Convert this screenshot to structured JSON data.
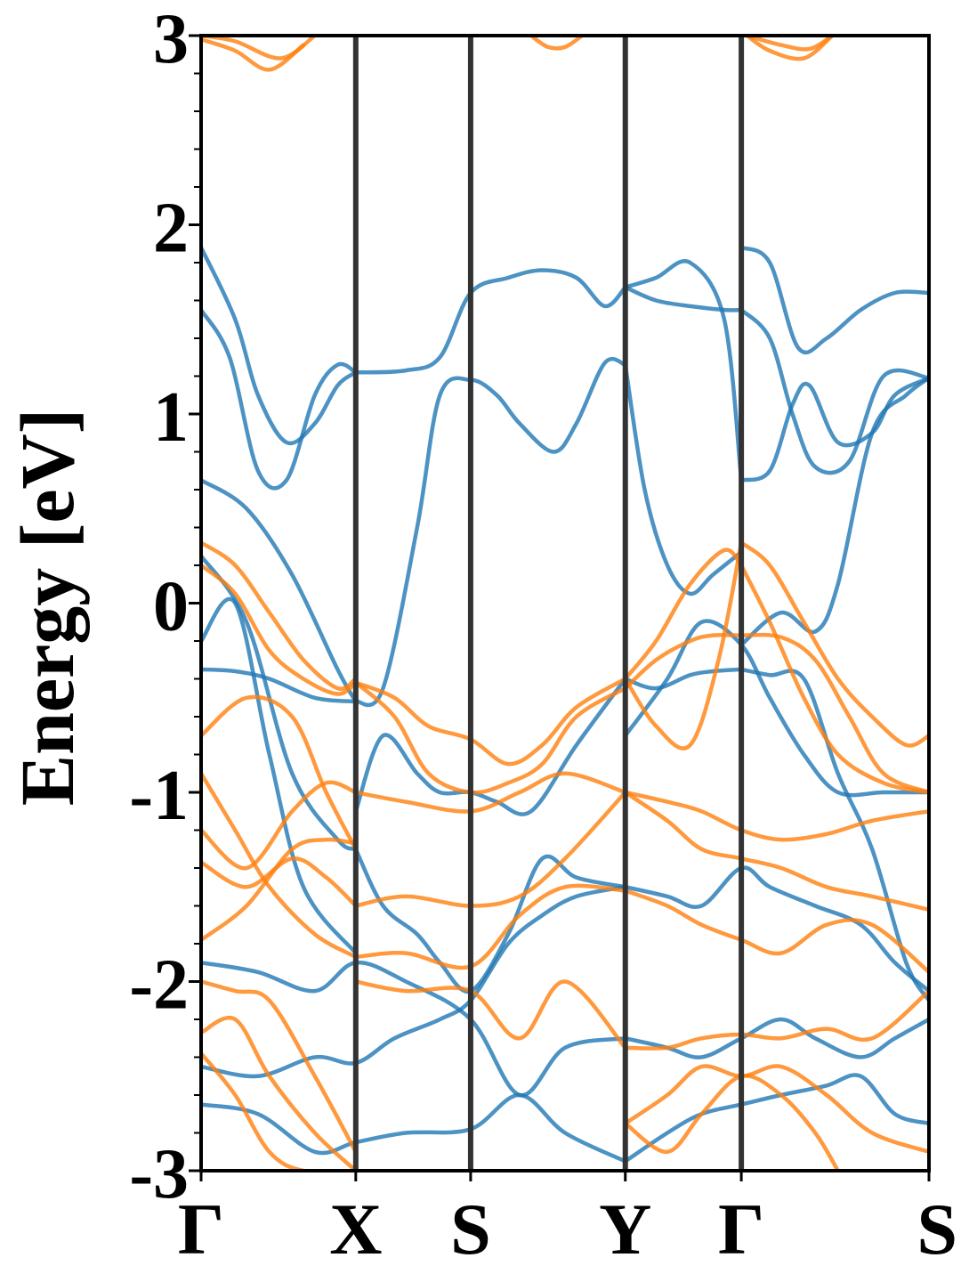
{
  "chart_data": {
    "type": "line",
    "title": "",
    "ylabel": "Energy [eV]",
    "xlabel": "",
    "ylim": [
      -3,
      3
    ],
    "yticks": [
      -3,
      -2,
      -1,
      0,
      1,
      2,
      3
    ],
    "ytick_labels": [
      "-3",
      "-2",
      "-1",
      "0",
      "1",
      "2",
      "3"
    ],
    "xlim": [
      0,
      6.4
    ],
    "high_symmetry_points": [
      {
        "label": "Γ",
        "x": 0.0
      },
      {
        "label": "X",
        "x": 1.36
      },
      {
        "label": "S",
        "x": 2.37
      },
      {
        "label": "Y",
        "x": 3.73
      },
      {
        "label": "Γ",
        "x": 4.75
      },
      {
        "label": "S",
        "x": 6.4
      }
    ],
    "grid": false,
    "legend": "none",
    "colors": {
      "spin_up": "#1f77b4",
      "spin_down": "#ff7f0e",
      "kpath_lines": "#333333"
    },
    "series": [
      {
        "color": "#1f77b4",
        "x": [
          0,
          0.3,
          0.5,
          0.75,
          1.0,
          1.2,
          1.36
        ],
        "y": [
          1.88,
          1.5,
          1.1,
          0.85,
          0.95,
          1.15,
          1.22
        ]
      },
      {
        "color": "#1f77b4",
        "x": [
          0,
          0.25,
          0.5,
          0.75,
          1.0,
          1.2,
          1.36
        ],
        "y": [
          1.55,
          1.3,
          0.7,
          0.65,
          1.1,
          1.26,
          1.22
        ]
      },
      {
        "color": "#1f77b4",
        "x": [
          1.36,
          1.8,
          2.1,
          2.37,
          2.7,
          3.0,
          3.3,
          3.55,
          3.73
        ],
        "y": [
          1.22,
          1.23,
          1.3,
          1.64,
          1.72,
          1.76,
          1.72,
          1.57,
          1.67
        ]
      },
      {
        "color": "#1f77b4",
        "x": [
          0,
          0.4,
          0.8,
          1.2,
          1.36
        ],
        "y": [
          0.65,
          0.5,
          0.15,
          -0.35,
          -0.52
        ]
      },
      {
        "color": "#1f77b4",
        "x": [
          1.36,
          1.6,
          1.9,
          2.1,
          2.37,
          2.6,
          2.8,
          3.1,
          3.3,
          3.55,
          3.73
        ],
        "y": [
          -0.52,
          -0.45,
          0.4,
          1.1,
          1.18,
          1.1,
          0.95,
          0.8,
          0.95,
          1.27,
          1.26
        ]
      },
      {
        "color": "#1f77b4",
        "x": [
          3.73,
          3.9,
          4.1,
          4.3,
          4.5,
          4.75
        ],
        "y": [
          1.26,
          0.6,
          0.2,
          0.05,
          0.15,
          0.27
        ]
      },
      {
        "color": "#1f77b4",
        "x": [
          3.73,
          4.0,
          4.3,
          4.6,
          4.75
        ],
        "y": [
          1.67,
          1.6,
          1.57,
          1.55,
          1.55
        ]
      },
      {
        "color": "#1f77b4",
        "x": [
          3.73,
          4.0,
          4.3,
          4.6,
          4.75
        ],
        "y": [
          1.67,
          1.72,
          1.8,
          1.5,
          0.65
        ]
      },
      {
        "color": "#1f77b4",
        "x": [
          4.75,
          5.0,
          5.25,
          5.5,
          5.8,
          6.1,
          6.4
        ],
        "y": [
          1.88,
          1.8,
          1.35,
          1.4,
          1.55,
          1.64,
          1.64
        ]
      },
      {
        "color": "#1f77b4",
        "x": [
          4.75,
          5.0,
          5.2,
          5.35,
          5.6,
          5.9,
          6.1,
          6.4
        ],
        "y": [
          0.65,
          0.7,
          1.05,
          1.15,
          0.85,
          0.9,
          1.1,
          1.19
        ]
      },
      {
        "color": "#1f77b4",
        "x": [
          4.75,
          5.0,
          5.2,
          5.4,
          5.7,
          6.0,
          6.4
        ],
        "y": [
          1.55,
          1.4,
          1.0,
          0.72,
          0.75,
          1.2,
          1.19
        ]
      },
      {
        "color": "#1f77b4",
        "x": [
          4.75,
          5.1,
          5.4,
          5.6,
          5.9,
          6.2,
          6.4
        ],
        "y": [
          -0.22,
          -0.05,
          -0.15,
          0.1,
          0.9,
          1.1,
          1.19
        ]
      },
      {
        "color": "#1f77b4",
        "x": [
          0,
          0.3,
          0.6,
          1.0,
          1.36
        ],
        "y": [
          -0.35,
          -0.36,
          -0.4,
          -0.5,
          -0.52
        ]
      },
      {
        "color": "#1f77b4",
        "x": [
          0,
          0.3,
          0.6,
          0.9,
          1.36
        ],
        "y": [
          -0.2,
          0.0,
          -0.8,
          -1.5,
          -1.85
        ]
      },
      {
        "color": "#1f77b4",
        "x": [
          0,
          0.4,
          0.8,
          1.2,
          1.36
        ],
        "y": [
          0.25,
          -0.1,
          -0.9,
          -1.25,
          -1.3
        ]
      },
      {
        "color": "#1f77b4",
        "x": [
          1.36,
          1.6,
          1.9,
          2.1,
          2.37,
          2.7,
          3.0,
          3.3,
          3.73
        ],
        "y": [
          -1.3,
          -1.6,
          -1.75,
          -1.9,
          -2.05,
          -1.75,
          -1.35,
          -1.45,
          -1.5
        ]
      },
      {
        "color": "#1f77b4",
        "x": [
          1.36,
          1.6,
          1.9,
          2.1,
          2.37,
          2.6,
          2.9,
          3.3,
          3.73
        ],
        "y": [
          -1.1,
          -0.7,
          -0.9,
          -1.0,
          -1.0,
          -1.05,
          -1.1,
          -0.75,
          -0.4
        ]
      },
      {
        "color": "#1f77b4",
        "x": [
          3.73,
          4.0,
          4.3,
          4.5,
          4.75
        ],
        "y": [
          -0.4,
          -0.45,
          -0.38,
          -0.36,
          -0.35
        ]
      },
      {
        "color": "#1f77b4",
        "x": [
          3.73,
          4.1,
          4.4,
          4.75,
          5.0,
          5.3,
          5.6,
          6.0,
          6.4
        ],
        "y": [
          -0.7,
          -0.4,
          -0.1,
          -0.22,
          -0.5,
          -0.8,
          -1.0,
          -1.0,
          -1.0
        ]
      },
      {
        "color": "#1f77b4",
        "x": [
          4.75,
          5.0,
          5.3,
          5.6,
          5.9,
          6.2,
          6.4
        ],
        "y": [
          -0.35,
          -0.38,
          -0.4,
          -0.9,
          -1.3,
          -1.9,
          -2.1
        ]
      },
      {
        "color": "#1f77b4",
        "x": [
          0,
          0.5,
          1.0,
          1.36,
          1.8,
          2.37,
          2.8,
          3.2,
          3.73
        ],
        "y": [
          -1.9,
          -1.95,
          -2.05,
          -1.9,
          -2.0,
          -2.2,
          -2.6,
          -2.35,
          -2.3
        ]
      },
      {
        "color": "#1f77b4",
        "x": [
          0,
          0.5,
          1.0,
          1.36,
          1.7,
          2.1,
          2.37,
          2.7,
          3.0,
          3.3,
          3.73
        ],
        "y": [
          -2.45,
          -2.5,
          -2.4,
          -2.43,
          -2.3,
          -2.2,
          -2.1,
          -1.8,
          -1.65,
          -1.55,
          -1.5
        ]
      },
      {
        "color": "#1f77b4",
        "x": [
          0,
          0.5,
          1.0,
          1.36,
          1.8,
          2.37,
          2.8,
          3.2,
          3.73
        ],
        "y": [
          -2.65,
          -2.7,
          -2.9,
          -2.85,
          -2.8,
          -2.78,
          -2.6,
          -2.8,
          -2.95
        ]
      },
      {
        "color": "#1f77b4",
        "x": [
          3.73,
          4.1,
          4.4,
          4.75,
          5.1,
          5.4,
          5.8,
          6.1,
          6.4
        ],
        "y": [
          -2.3,
          -2.35,
          -2.4,
          -2.3,
          -2.2,
          -2.3,
          -2.4,
          -2.3,
          -2.2
        ]
      },
      {
        "color": "#1f77b4",
        "x": [
          3.73,
          4.1,
          4.4,
          4.75,
          5.1,
          5.5,
          5.8,
          6.1,
          6.4
        ],
        "y": [
          -2.95,
          -2.8,
          -2.7,
          -2.65,
          -2.6,
          -2.55,
          -2.5,
          -2.7,
          -2.75
        ]
      },
      {
        "color": "#1f77b4",
        "x": [
          3.73,
          4.1,
          4.4,
          4.75,
          5.0,
          5.4,
          5.8,
          6.1,
          6.4
        ],
        "y": [
          -1.5,
          -1.55,
          -1.6,
          -1.4,
          -1.5,
          -1.6,
          -1.7,
          -1.9,
          -2.05
        ]
      },
      {
        "color": "#ff7f0e",
        "x": [
          0,
          0.3,
          0.6,
          0.9,
          1.2,
          1.36
        ],
        "y": [
          0.32,
          0.2,
          -0.05,
          -0.3,
          -0.45,
          -0.4
        ]
      },
      {
        "color": "#ff7f0e",
        "x": [
          0,
          0.3,
          0.6,
          0.9,
          1.2,
          1.36
        ],
        "y": [
          0.2,
          0.05,
          -0.25,
          -0.4,
          -0.48,
          -0.42
        ]
      },
      {
        "color": "#ff7f0e",
        "x": [
          1.36,
          1.7,
          2.0,
          2.37,
          2.7,
          3.0,
          3.3,
          3.73
        ],
        "y": [
          -0.42,
          -0.5,
          -0.65,
          -0.72,
          -0.85,
          -0.75,
          -0.55,
          -0.4
        ]
      },
      {
        "color": "#ff7f0e",
        "x": [
          1.36,
          1.7,
          2.0,
          2.37,
          2.7,
          3.0,
          3.3,
          3.73
        ],
        "y": [
          -0.42,
          -0.6,
          -0.9,
          -1.0,
          -0.95,
          -0.85,
          -0.6,
          -0.45
        ]
      },
      {
        "color": "#ff7f0e",
        "x": [
          3.73,
          4.0,
          4.3,
          4.5,
          4.75
        ],
        "y": [
          -0.45,
          -0.3,
          -0.2,
          -0.17,
          -0.17
        ]
      },
      {
        "color": "#ff7f0e",
        "x": [
          3.73,
          4.0,
          4.3,
          4.55,
          4.75
        ],
        "y": [
          -0.4,
          -0.65,
          -0.75,
          -0.3,
          0.32
        ]
      },
      {
        "color": "#ff7f0e",
        "x": [
          3.73,
          4.0,
          4.3,
          4.6,
          4.75
        ],
        "y": [
          -0.4,
          -0.2,
          0.1,
          0.28,
          0.2
        ]
      },
      {
        "color": "#ff7f0e",
        "x": [
          4.75,
          5.0,
          5.3,
          5.6,
          5.9,
          6.2,
          6.4
        ],
        "y": [
          0.32,
          0.2,
          -0.1,
          -0.4,
          -0.6,
          -0.75,
          -0.7
        ]
      },
      {
        "color": "#ff7f0e",
        "x": [
          4.75,
          5.1,
          5.4,
          5.7,
          6.0,
          6.4
        ],
        "y": [
          -0.17,
          -0.18,
          -0.3,
          -0.6,
          -0.9,
          -1.0
        ]
      },
      {
        "color": "#ff7f0e",
        "x": [
          4.75,
          5.0,
          5.3,
          5.6,
          6.0,
          6.4
        ],
        "y": [
          0.2,
          -0.1,
          -0.5,
          -0.8,
          -0.95,
          -1.0
        ]
      },
      {
        "color": "#ff7f0e",
        "x": [
          0,
          0.4,
          0.8,
          1.1,
          1.36
        ],
        "y": [
          -0.7,
          -0.5,
          -0.6,
          -1.0,
          -1.3
        ]
      },
      {
        "color": "#ff7f0e",
        "x": [
          0,
          0.3,
          0.6,
          1.0,
          1.36
        ],
        "y": [
          -0.9,
          -1.2,
          -1.5,
          -1.75,
          -1.87
        ]
      },
      {
        "color": "#ff7f0e",
        "x": [
          1.36,
          1.8,
          2.37,
          2.8,
          3.2,
          3.73
        ],
        "y": [
          -1.87,
          -1.85,
          -1.92,
          -1.65,
          -1.5,
          -1.52
        ]
      },
      {
        "color": "#ff7f0e",
        "x": [
          1.36,
          1.8,
          2.37,
          2.8,
          3.2,
          3.73
        ],
        "y": [
          -1.6,
          -1.55,
          -1.6,
          -1.55,
          -1.35,
          -1.0
        ]
      },
      {
        "color": "#ff7f0e",
        "x": [
          1.36,
          1.8,
          2.37,
          2.8,
          3.2,
          3.73
        ],
        "y": [
          -1.0,
          -1.05,
          -1.1,
          -1.0,
          -0.9,
          -1.0
        ]
      },
      {
        "color": "#ff7f0e",
        "x": [
          0,
          0.4,
          0.8,
          1.1,
          1.36
        ],
        "y": [
          -1.2,
          -1.4,
          -1.1,
          -0.95,
          -1.0
        ]
      },
      {
        "color": "#ff7f0e",
        "x": [
          0,
          0.4,
          0.8,
          1.1,
          1.36
        ],
        "y": [
          -1.37,
          -1.5,
          -1.35,
          -1.45,
          -1.6
        ]
      },
      {
        "color": "#ff7f0e",
        "x": [
          0,
          0.4,
          0.8,
          1.1,
          1.36
        ],
        "y": [
          -1.78,
          -1.6,
          -1.3,
          -1.25,
          -1.27
        ]
      },
      {
        "color": "#ff7f0e",
        "x": [
          1.36,
          1.8,
          2.37,
          2.8,
          3.2,
          3.73
        ],
        "y": [
          -2.0,
          -2.05,
          -2.05,
          -2.3,
          -2.0,
          -2.35
        ]
      },
      {
        "color": "#ff7f0e",
        "x": [
          3.73,
          4.1,
          4.4,
          4.75,
          5.1,
          5.5,
          5.9,
          6.4
        ],
        "y": [
          -1.0,
          -1.05,
          -1.1,
          -1.2,
          -1.25,
          -1.22,
          -1.15,
          -1.1
        ]
      },
      {
        "color": "#ff7f0e",
        "x": [
          3.73,
          4.1,
          4.4,
          4.75,
          5.1,
          5.5,
          5.9,
          6.4
        ],
        "y": [
          -1.0,
          -1.15,
          -1.3,
          -1.35,
          -1.4,
          -1.5,
          -1.55,
          -1.62
        ]
      },
      {
        "color": "#ff7f0e",
        "x": [
          3.73,
          4.1,
          4.4,
          4.75,
          5.1,
          5.5,
          5.9,
          6.4
        ],
        "y": [
          -1.52,
          -1.6,
          -1.7,
          -1.78,
          -1.85,
          -1.7,
          -1.7,
          -1.95
        ]
      },
      {
        "color": "#ff7f0e",
        "x": [
          3.73,
          4.1,
          4.4,
          4.75,
          5.1,
          5.5,
          5.9,
          6.4
        ],
        "y": [
          -2.35,
          -2.35,
          -2.3,
          -2.28,
          -2.3,
          -2.25,
          -2.3,
          -2.05
        ]
      },
      {
        "color": "#ff7f0e",
        "x": [
          0,
          0.3,
          0.6,
          1.0,
          1.36
        ],
        "y": [
          -2.0,
          -2.05,
          -2.1,
          -2.5,
          -2.9
        ]
      },
      {
        "color": "#ff7f0e",
        "x": [
          0,
          0.3,
          0.6,
          1.0,
          1.36
        ],
        "y": [
          -2.27,
          -2.2,
          -2.5,
          -2.8,
          -3.0
        ]
      },
      {
        "color": "#ff7f0e",
        "x": [
          0,
          0.3,
          0.6,
          0.9,
          1.36
        ],
        "y": [
          -2.38,
          -2.6,
          -2.9,
          -3.0,
          -3.0
        ]
      },
      {
        "color": "#ff7f0e",
        "x": [
          3.73,
          4.1,
          4.4,
          4.75,
          5.1,
          5.5,
          5.9,
          6.4
        ],
        "y": [
          -2.75,
          -2.6,
          -2.45,
          -2.5,
          -2.45,
          -2.6,
          -2.8,
          -2.9
        ]
      },
      {
        "color": "#ff7f0e",
        "x": [
          3.73,
          4.1,
          4.4,
          4.75,
          5.1,
          5.4,
          5.6
        ],
        "y": [
          -2.75,
          -2.9,
          -2.7,
          -2.5,
          -2.6,
          -2.8,
          -3.0
        ]
      },
      {
        "color": "#ff7f0e",
        "x": [
          0,
          0.3,
          0.6,
          0.9
        ],
        "y": [
          2.98,
          2.92,
          2.82,
          2.95
        ]
      },
      {
        "color": "#ff7f0e",
        "x": [
          0,
          0.3,
          0.7,
          1.0
        ],
        "y": [
          3.0,
          2.97,
          2.88,
          3.0
        ]
      },
      {
        "color": "#ff7f0e",
        "x": [
          2.9,
          3.05,
          3.2,
          3.35
        ],
        "y": [
          3.0,
          2.94,
          2.94,
          3.0
        ]
      },
      {
        "color": "#ff7f0e",
        "x": [
          4.8,
          5.0,
          5.3,
          5.55
        ],
        "y": [
          3.0,
          2.92,
          2.88,
          3.0
        ]
      },
      {
        "color": "#ff7f0e",
        "x": [
          4.8,
          5.1,
          5.35,
          5.55
        ],
        "y": [
          3.0,
          2.95,
          2.93,
          3.0
        ]
      }
    ]
  }
}
